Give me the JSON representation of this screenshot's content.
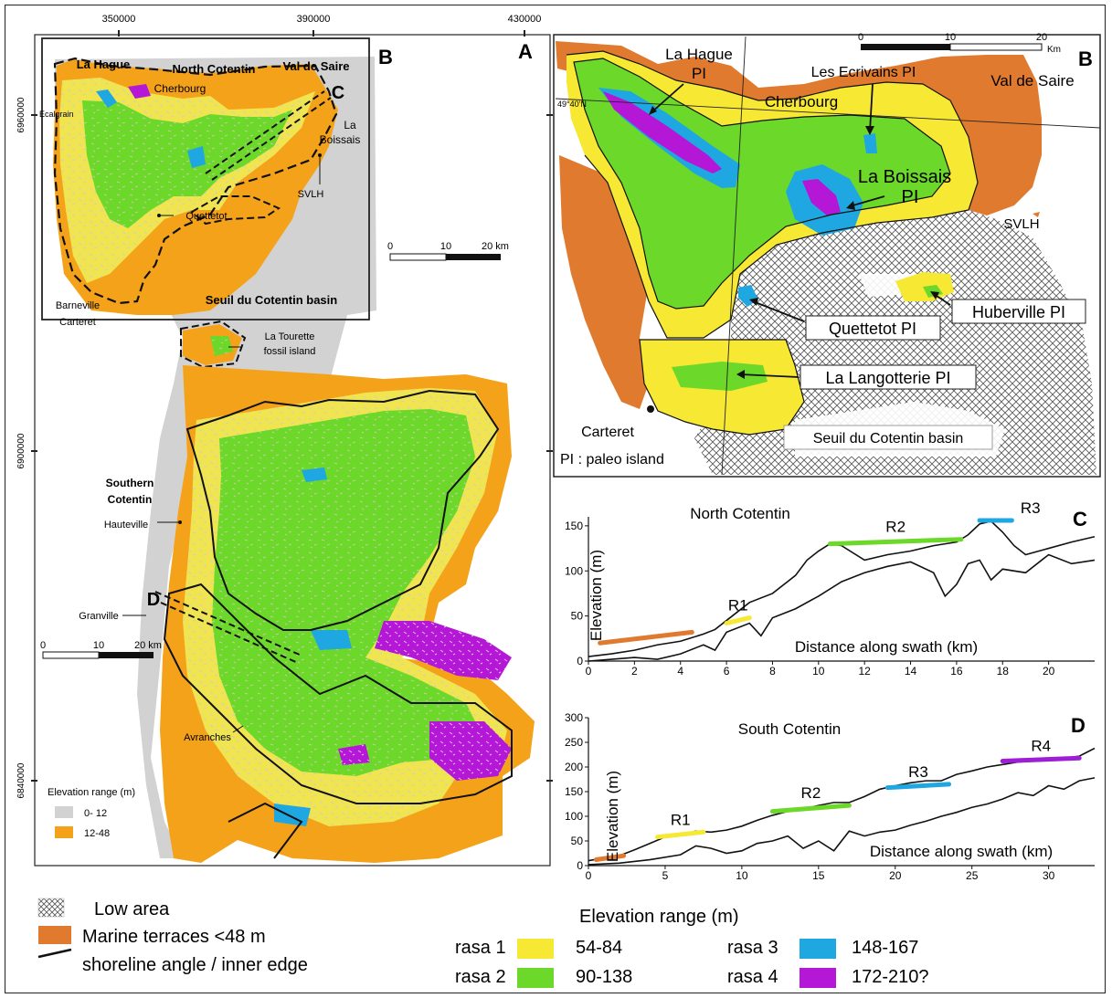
{
  "panelA": {
    "panel_letter": "A",
    "inset_letter": "B",
    "coords_top": [
      "350000",
      "390000",
      "430000"
    ],
    "coords_left": [
      "6960000",
      "6900000",
      "6840000"
    ],
    "labels": {
      "la_hague": "La Hague",
      "north_cotentin": "North Cotentin",
      "val_de_saire": "Val de Saire",
      "cherbourg": "Cherbourg",
      "ecalgrain": "Ecalgrain",
      "la": "La",
      "boissais": "Boissais",
      "svlh": "SVLH",
      "quettetot": "Quettetot",
      "barneville": "Barneville",
      "carteret": "Carteret",
      "seuil_basin": "Seuil du Cotentin basin",
      "la_tourette": "La Tourette",
      "fossil_island": "fossil island",
      "southern": "Southern",
      "cotentin": "Cotentin",
      "hauteville": "Hauteville",
      "granville": "Granville",
      "avranches": "Avranches",
      "profile_c": "C",
      "profile_d": "D"
    },
    "scalebar_top": [
      "0",
      "10",
      "20 km"
    ],
    "scalebar_left": [
      "0",
      "10",
      "20 km"
    ],
    "elev_legend": {
      "title": "Elevation range (m)",
      "items": [
        {
          "label": "0- 12",
          "color": "#d2d2d2"
        },
        {
          "label": "12-48",
          "color": "#f5a21b"
        }
      ]
    }
  },
  "panelB": {
    "panel_letter": "B",
    "scalebar": [
      "0",
      "10",
      "20"
    ],
    "scalebar_unit": "Km",
    "lat_label": "49°40'N",
    "labels": {
      "la_hague_pi_1": "La Hague",
      "la_hague_pi_2": "PI",
      "les_ecrivains": "Les Ecrivains PI",
      "val_de_saire": "Val de Saire",
      "cherbourg": "Cherbourg",
      "la_boissais_1": "La Boissais",
      "la_boissais_2": "PI",
      "svlh": "SVLH",
      "huberville": "Huberville PI",
      "quettetot": "Quettetot PI",
      "la_langotterie": "La Langotterie PI",
      "carteret": "Carteret",
      "seuil_basin": "Seuil du Cotentin basin",
      "pi_note": "PI : paleo island"
    }
  },
  "chart_data": [
    {
      "type": "line",
      "panel": "C",
      "title": "North Cotentin",
      "xlabel": "Distance along swath (km)",
      "ylabel": "Elevation (m)",
      "xlim": [
        0,
        22
      ],
      "ylim": [
        0,
        160
      ],
      "xticks": [
        0,
        2,
        4,
        6,
        8,
        10,
        12,
        14,
        16,
        18,
        20
      ],
      "yticks": [
        0,
        50,
        100,
        150
      ],
      "series": [
        {
          "role": "max",
          "x": [
            0,
            1,
            2,
            3,
            4,
            5,
            5.5,
            6,
            6.5,
            7,
            8,
            9,
            9.5,
            10,
            10.5,
            11,
            12,
            13,
            14,
            15,
            16,
            16.5,
            17,
            17.5,
            18,
            18.5,
            19,
            20,
            21,
            22
          ],
          "y": [
            5,
            8,
            12,
            18,
            22,
            30,
            35,
            45,
            55,
            65,
            75,
            95,
            112,
            122,
            130,
            128,
            112,
            118,
            122,
            128,
            132,
            140,
            152,
            155,
            143,
            128,
            118,
            125,
            132,
            138
          ]
        },
        {
          "role": "min",
          "x": [
            0,
            1,
            2,
            3,
            4,
            5,
            5.5,
            6,
            7,
            7.5,
            8,
            9,
            10,
            11,
            12,
            13,
            14,
            15,
            15.5,
            16,
            16.5,
            17,
            17.5,
            18,
            19,
            20,
            21,
            22
          ],
          "y": [
            0,
            2,
            4,
            2,
            8,
            18,
            12,
            32,
            42,
            28,
            48,
            58,
            72,
            88,
            98,
            105,
            110,
            98,
            72,
            85,
            108,
            112,
            90,
            102,
            98,
            118,
            108,
            112
          ]
        }
      ],
      "rasa_segments": [
        {
          "name": "",
          "x": [
            0.5,
            4.5
          ],
          "y": [
            20,
            32
          ],
          "color": "#e07a2e"
        },
        {
          "name": "R1",
          "x": [
            6,
            7
          ],
          "y": [
            42,
            48
          ],
          "color": "#f6e833"
        },
        {
          "name": "R2",
          "x": [
            10.5,
            16.2
          ],
          "y": [
            130,
            135
          ],
          "color": "#6bd82a"
        },
        {
          "name": "R3",
          "x": [
            17,
            18.4
          ],
          "y": [
            156,
            156
          ],
          "color": "#1ea7e1"
        }
      ],
      "panel_letter": "C"
    },
    {
      "type": "line",
      "panel": "D",
      "title": "South Cotentin",
      "xlabel": "Distance along swath (km)",
      "ylabel": "Elevation (m)",
      "xlim": [
        0,
        33
      ],
      "ylim": [
        0,
        300
      ],
      "xticks": [
        0,
        5,
        10,
        15,
        20,
        25,
        30
      ],
      "yticks": [
        0,
        50,
        100,
        150,
        200,
        250,
        300
      ],
      "series": [
        {
          "role": "max",
          "x": [
            0,
            2,
            3,
            4,
            5,
            6,
            7,
            8,
            9,
            10,
            11,
            12,
            13,
            14,
            15,
            16,
            17,
            18,
            19,
            20,
            21,
            22,
            23,
            24,
            25,
            26,
            27,
            28,
            29,
            30,
            31,
            32,
            33
          ],
          "y": [
            10,
            20,
            32,
            45,
            58,
            62,
            70,
            68,
            72,
            80,
            92,
            102,
            110,
            115,
            122,
            128,
            128,
            140,
            155,
            162,
            168,
            172,
            172,
            185,
            192,
            200,
            205,
            210,
            212,
            215,
            218,
            222,
            238
          ]
        },
        {
          "role": "min",
          "x": [
            0,
            2,
            4,
            6,
            7,
            8,
            9,
            10,
            11,
            12,
            13,
            14,
            15,
            16,
            17,
            18,
            19,
            20,
            21,
            22,
            23,
            24,
            25,
            26,
            27,
            28,
            29,
            30,
            31,
            32,
            33
          ],
          "y": [
            2,
            5,
            12,
            22,
            40,
            35,
            25,
            30,
            45,
            50,
            60,
            35,
            50,
            30,
            70,
            60,
            68,
            72,
            82,
            90,
            100,
            108,
            118,
            125,
            135,
            148,
            142,
            162,
            155,
            172,
            178
          ]
        }
      ],
      "rasa_segments": [
        {
          "name": "",
          "x": [
            0.5,
            2.3
          ],
          "y": [
            12,
            20
          ],
          "color": "#e07a2e"
        },
        {
          "name": "R1",
          "x": [
            4.5,
            7.5
          ],
          "y": [
            58,
            68
          ],
          "color": "#f6e833"
        },
        {
          "name": "R2",
          "x": [
            12,
            17
          ],
          "y": [
            110,
            122
          ],
          "color": "#6bd82a"
        },
        {
          "name": "R3",
          "x": [
            19.5,
            23.5
          ],
          "y": [
            158,
            165
          ],
          "color": "#1ea7e1"
        },
        {
          "name": "R4",
          "x": [
            27,
            32
          ],
          "y": [
            212,
            218
          ],
          "color": "#9e1dd6"
        }
      ],
      "panel_letter": "D"
    }
  ],
  "legend": {
    "low_area": "Low area",
    "marine_terraces": "Marine terraces <48 m",
    "shoreline": "shoreline angle / inner edge",
    "elev_title": "Elevation range (m)",
    "rasa": [
      {
        "name": "rasa 1",
        "range": "54-84",
        "color": "#f6e833"
      },
      {
        "name": "rasa 2",
        "range": "90-138",
        "color": "#6bd82a"
      },
      {
        "name": "rasa 3",
        "range": "148-167",
        "color": "#1ea7e1"
      },
      {
        "name": "rasa 4",
        "range": "172-210?",
        "color": "#b517d6"
      }
    ],
    "terrace_color": "#e07a2e"
  }
}
